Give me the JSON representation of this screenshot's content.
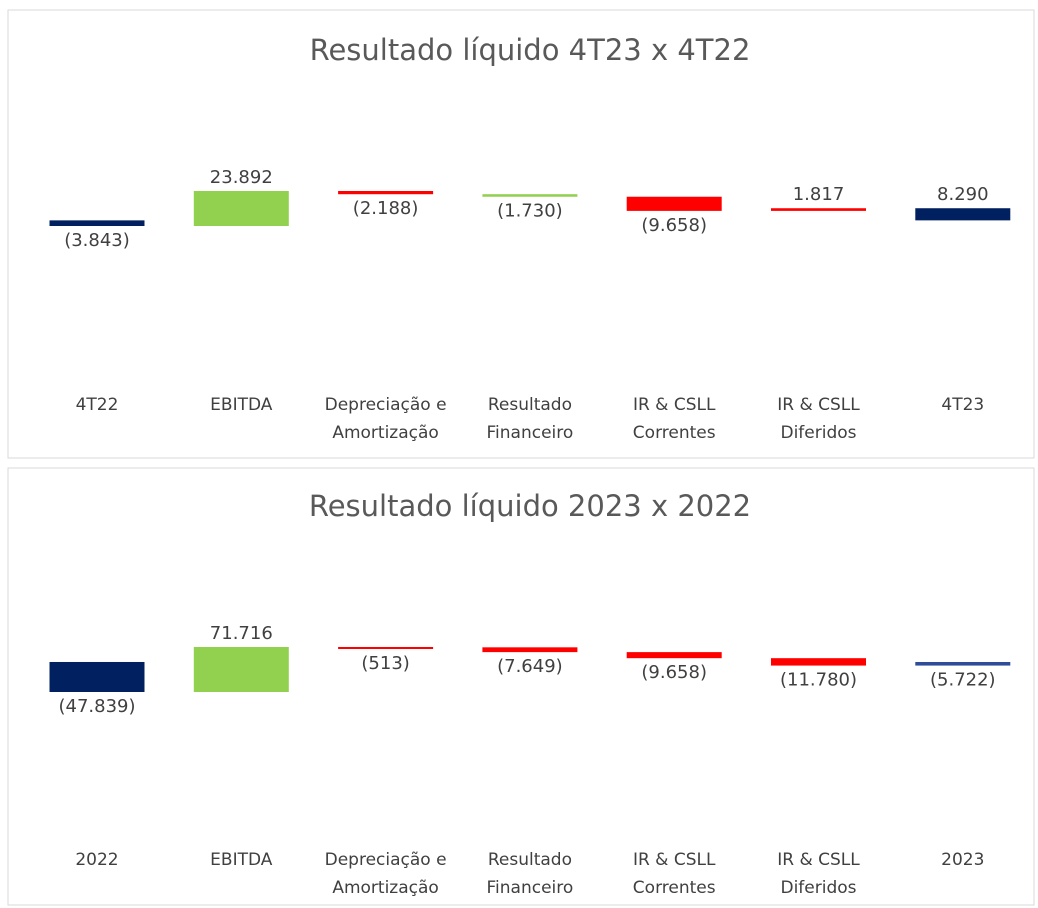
{
  "chart_data": [
    {
      "type": "waterfall",
      "title": "Resultado líquido 4T23 x 4T22",
      "categories": [
        [
          "4T22"
        ],
        [
          "EBITDA"
        ],
        [
          "Depreciação e",
          "Amortização"
        ],
        [
          "Resultado",
          "Financeiro"
        ],
        [
          "IR & CSLL",
          "Correntes"
        ],
        [
          "IR & CSLL",
          "Diferidos"
        ],
        [
          "4T23"
        ]
      ],
      "values": [
        -3843,
        23892,
        -2188,
        -1730,
        -9658,
        1817,
        8290
      ],
      "value_labels": [
        "(3.843)",
        "23.892",
        "(2.188)",
        "(1.730)",
        "(9.658)",
        "1.817",
        "8.290"
      ],
      "totals": [
        true,
        false,
        false,
        false,
        false,
        false,
        true
      ],
      "colors": [
        "#002060",
        "#92d050",
        "#ff0000",
        "#92d050",
        "#ff0000",
        "#ff0000",
        "#002060"
      ]
    },
    {
      "type": "waterfall",
      "title": "Resultado líquido 2023 x 2022",
      "categories": [
        [
          "2022"
        ],
        [
          "EBITDA"
        ],
        [
          "Depreciação e",
          "Amortização"
        ],
        [
          "Resultado",
          "Financeiro"
        ],
        [
          "IR & CSLL",
          "Correntes"
        ],
        [
          "IR & CSLL",
          "Diferidos"
        ],
        [
          "2023"
        ]
      ],
      "values": [
        -47839,
        71716,
        -513,
        -7649,
        -9658,
        -11780,
        -5722
      ],
      "value_labels": [
        "(47.839)",
        "71.716",
        "(513)",
        "(7.649)",
        "(9.658)",
        "(11.780)",
        "(5.722)"
      ],
      "totals": [
        true,
        false,
        false,
        false,
        false,
        false,
        true
      ],
      "colors": [
        "#002060",
        "#92d050",
        "#ff0000",
        "#ff0000",
        "#ff0000",
        "#ff0000",
        "#2f4b9a"
      ]
    }
  ]
}
